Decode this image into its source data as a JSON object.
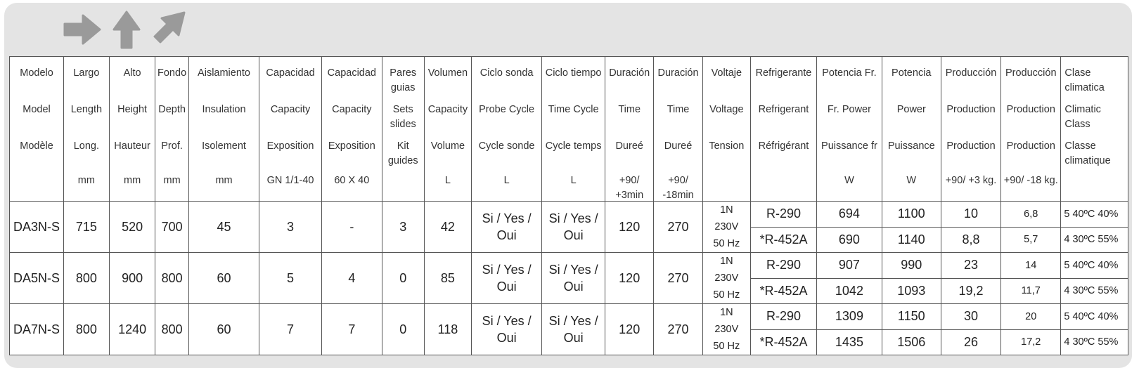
{
  "icons": [
    "arrow-right-icon",
    "arrow-up-icon",
    "arrow-up-right-icon"
  ],
  "colors": {
    "panel": "#e4e4e4",
    "icon": "#9a9a9a",
    "border": "#555555"
  },
  "header": [
    {
      "l1": "Modelo",
      "l2": "Model",
      "l3": "Modèle",
      "l4": ""
    },
    {
      "l1": "Largo",
      "l2": "Length",
      "l3": "Long.",
      "l4": "mm"
    },
    {
      "l1": "Alto",
      "l2": "Height",
      "l3": "Hauteur",
      "l4": "mm"
    },
    {
      "l1": "Fondo",
      "l2": "Depth",
      "l3": "Prof.",
      "l4": "mm"
    },
    {
      "l1": "Aislamiento",
      "l2": "Insulation",
      "l3": "Isolement",
      "l4": "mm"
    },
    {
      "l1": "Capacidad",
      "l2": "Capacity",
      "l3": "Exposition",
      "l4": "GN 1/1-40"
    },
    {
      "l1": "Capacidad",
      "l2": "Capacity",
      "l3": "Exposition",
      "l4": "60 X 40"
    },
    {
      "l1": "Pares guias",
      "l2": "Sets slides",
      "l3": "Kit guides",
      "l4": ""
    },
    {
      "l1": "Volumen",
      "l2": "Capacity",
      "l3": "Volume",
      "l4": "L"
    },
    {
      "l1": "Ciclo sonda",
      "l2": "Probe Cycle",
      "l3": "Cycle sonde",
      "l4": "L"
    },
    {
      "l1": "Ciclo tiempo",
      "l2": "Time Cycle",
      "l3": "Cycle temps",
      "l4": "L"
    },
    {
      "l1": "Duración",
      "l2": "Time",
      "l3": "Dureé",
      "l4": "+90/ +3min"
    },
    {
      "l1": "Duración",
      "l2": "Time",
      "l3": "Dureé",
      "l4": "+90/ -18min"
    },
    {
      "l1": "Voltaje",
      "l2": "Voltage",
      "l3": "Tension",
      "l4": ""
    },
    {
      "l1": "Refrigerante",
      "l2": "Refrigerant",
      "l3": "Réfrigérant",
      "l4": ""
    },
    {
      "l1": "Potencia Fr.",
      "l2": "Fr. Power",
      "l3": "Puissance fr",
      "l4": "W"
    },
    {
      "l1": "Potencia",
      "l2": "Power",
      "l3": "Puissance",
      "l4": "W"
    },
    {
      "l1": "Producción",
      "l2": "Production",
      "l3": "Production",
      "l4": "+90/ +3 kg."
    },
    {
      "l1": "Producción",
      "l2": "Production",
      "l3": "Production",
      "l4": "+90/ -18 kg."
    },
    {
      "l1": "Clase climatica",
      "l2": "Climatic Class",
      "l3": "Classe climatique",
      "l4": ""
    }
  ],
  "models": [
    {
      "model": "DA3N-S",
      "largo": "715",
      "alto": "520",
      "fondo": "700",
      "aislamiento": "45",
      "cap_gn": "3",
      "cap_6040": "-",
      "pares": "3",
      "volumen": "42",
      "ciclo_sonda": "Si / Yes / Oui",
      "ciclo_tiempo": "Si / Yes / Oui",
      "dur1": "120",
      "dur2": "270",
      "voltaje": "1N 230V 50 Hz",
      "variants": [
        {
          "refrigerante": "R-290",
          "potencia_fr": "694",
          "potencia": "1100",
          "prod1": "10",
          "prod2": "6,8",
          "clase": "5 40ºC 40%"
        },
        {
          "refrigerante": "*R-452A",
          "potencia_fr": "690",
          "potencia": "1140",
          "prod1": "8,8",
          "prod2": "5,7",
          "clase": "4 30ºC 55%"
        }
      ]
    },
    {
      "model": "DA5N-S",
      "largo": "800",
      "alto": "900",
      "fondo": "800",
      "aislamiento": "60",
      "cap_gn": "5",
      "cap_6040": "4",
      "pares": "0",
      "volumen": "85",
      "ciclo_sonda": "Si / Yes / Oui",
      "ciclo_tiempo": "Si / Yes / Oui",
      "dur1": "120",
      "dur2": "270",
      "voltaje": "1N 230V 50 Hz",
      "variants": [
        {
          "refrigerante": "R-290",
          "potencia_fr": "907",
          "potencia": "990",
          "prod1": "23",
          "prod2": "14",
          "clase": "5 40ºC 40%"
        },
        {
          "refrigerante": "*R-452A",
          "potencia_fr": "1042",
          "potencia": "1093",
          "prod1": "19,2",
          "prod2": "11,7",
          "clase": "4 30ºC 55%"
        }
      ]
    },
    {
      "model": "DA7N-S",
      "largo": "800",
      "alto": "1240",
      "fondo": "800",
      "aislamiento": "60",
      "cap_gn": "7",
      "cap_6040": "7",
      "pares": "0",
      "volumen": "118",
      "ciclo_sonda": "Si / Yes / Oui",
      "ciclo_tiempo": "Si / Yes / Oui",
      "dur1": "120",
      "dur2": "270",
      "voltaje": "1N 230V 50 Hz",
      "variants": [
        {
          "refrigerante": "R-290",
          "potencia_fr": "1309",
          "potencia": "1150",
          "prod1": "30",
          "prod2": "20",
          "clase": "5 40ºC 40%"
        },
        {
          "refrigerante": "*R-452A",
          "potencia_fr": "1435",
          "potencia": "1506",
          "prod1": "26",
          "prod2": "17,2",
          "clase": "4 30ºC 55%"
        }
      ]
    }
  ]
}
